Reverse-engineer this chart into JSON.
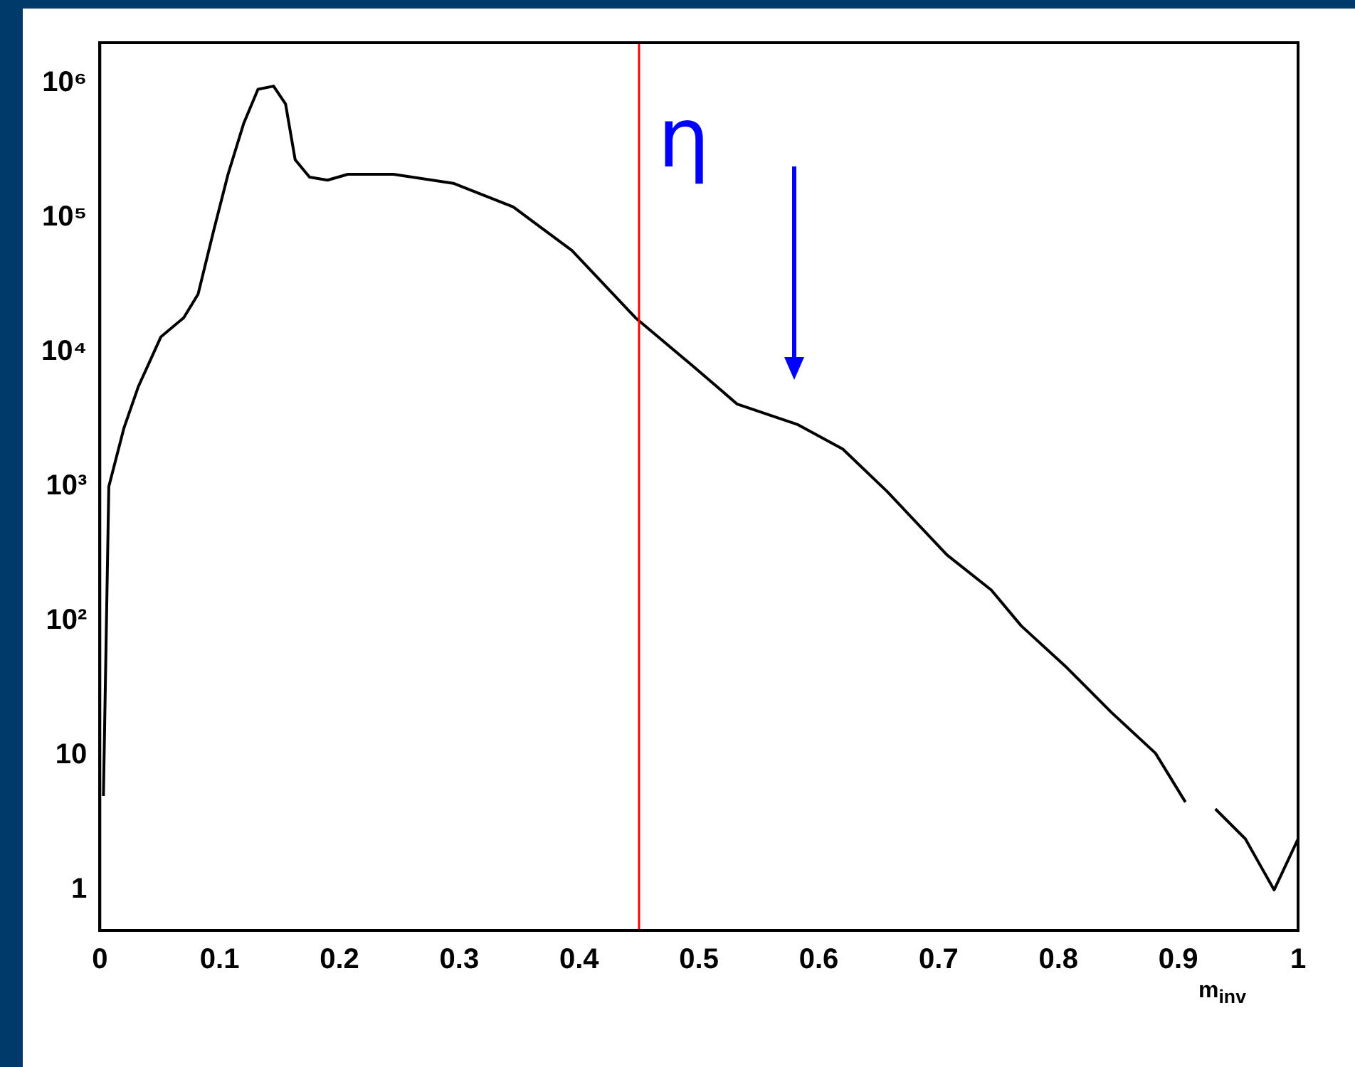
{
  "chart_data": {
    "type": "line",
    "xlabel": "m$_{inv}$",
    "series": [
      {
        "color": "#000000",
        "x": [
          0.003,
          0.0075,
          0.02,
          0.032,
          0.051,
          0.07,
          0.082,
          0.095,
          0.107,
          0.12,
          0.132,
          0.145,
          0.155,
          0.163,
          0.175,
          0.19,
          0.207,
          0.245,
          0.295,
          0.345,
          0.394,
          0.447,
          0.494,
          0.532,
          0.582,
          0.62,
          0.657,
          0.707,
          0.744,
          0.769,
          0.807,
          0.844,
          0.881,
          0.906,
          0.911,
          0.931,
          0.956,
          0.98,
          1.0
        ],
        "values": [
          5,
          1000,
          2700,
          5500,
          13000,
          18000,
          27000,
          80000,
          210000,
          500000,
          900000,
          950000,
          700000,
          270000,
          200000,
          190000,
          210000,
          210000,
          180000,
          120000,
          57000,
          18000,
          8000,
          4100,
          2900,
          1900,
          920,
          310,
          170,
          92,
          45,
          21,
          10.4,
          4.5,
          null,
          4,
          2.4,
          1,
          2.4
        ]
      }
    ],
    "log": "y",
    "xlim": [
      0,
      1
    ],
    "ylim": [
      0.5,
      2000000
    ],
    "xticks": [
      0,
      0.1,
      0.2,
      0.3,
      0.4,
      0.5,
      0.6,
      0.7,
      0.8,
      0.9,
      1
    ],
    "yticks": [
      1,
      10,
      {
        "value": 100,
        "label": "10²"
      },
      {
        "value": 1000,
        "label": "10³"
      },
      {
        "value": 10000,
        "label": "10⁴"
      },
      {
        "value": 100000,
        "label": "10⁵"
      },
      {
        "value": 1000000,
        "label": "10⁶"
      }
    ],
    "grid": false,
    "legend": false,
    "marker": "none",
    "line_style": "solid",
    "ref_lines": [
      {
        "axis": "x",
        "value": 0.45,
        "color": "#ff0000"
      }
    ],
    "annotations": [
      "η"
    ]
  }
}
